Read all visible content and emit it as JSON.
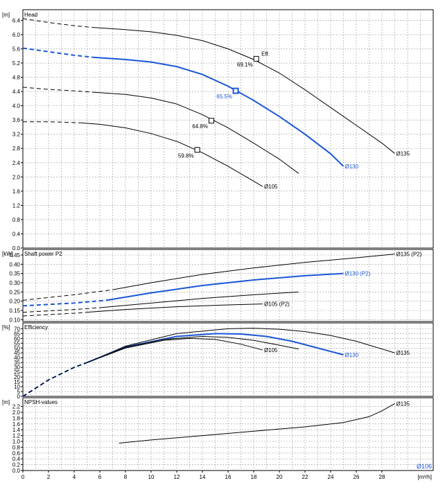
{
  "top_note": "",
  "colors": {
    "black_series": "#000000",
    "blue_series": "#1a56d6",
    "grid": "#9a9a9a"
  },
  "chart_data": [
    {
      "type": "line",
      "title": "Head",
      "ylabel": "[m]",
      "xlim": [
        0,
        32
      ],
      "ylim": [
        0,
        6.7
      ],
      "yticks": [
        0.0,
        0.4,
        0.8,
        1.2,
        1.6,
        2.0,
        2.4,
        2.8,
        3.2,
        3.6,
        4.0,
        4.4,
        4.8,
        5.2,
        5.6,
        6.0,
        6.4
      ],
      "series": [
        {
          "name": "Ø135",
          "color": "#000000",
          "dashed": [
            [
              0,
              6.45
            ],
            [
              2,
              6.34
            ],
            [
              4,
              6.25
            ],
            [
              5.5,
              6.2
            ]
          ],
          "values": [
            [
              5.5,
              6.2
            ],
            [
              8,
              6.14
            ],
            [
              10,
              6.08
            ],
            [
              12,
              5.98
            ],
            [
              14,
              5.83
            ],
            [
              16,
              5.6
            ],
            [
              18,
              5.3
            ],
            [
              20,
              4.92
            ],
            [
              22,
              4.45
            ],
            [
              24,
              3.95
            ],
            [
              26,
              3.45
            ],
            [
              28,
              2.95
            ],
            [
              29,
              2.66
            ]
          ]
        },
        {
          "name": "Ø130",
          "color": "#1a56d6",
          "dashed": [
            [
              0,
              5.62
            ],
            [
              2,
              5.52
            ],
            [
              4,
              5.42
            ],
            [
              5.5,
              5.36
            ]
          ],
          "values": [
            [
              5.5,
              5.36
            ],
            [
              8,
              5.3
            ],
            [
              10,
              5.23
            ],
            [
              12,
              5.1
            ],
            [
              14,
              4.88
            ],
            [
              16,
              4.55
            ],
            [
              18,
              4.15
            ],
            [
              20,
              3.7
            ],
            [
              22,
              3.2
            ],
            [
              24,
              2.65
            ],
            [
              25,
              2.3
            ]
          ]
        },
        {
          "name": "",
          "color": "#000000",
          "dashed": [
            [
              0,
              4.52
            ],
            [
              2,
              4.46
            ],
            [
              4,
              4.42
            ],
            [
              5.5,
              4.38
            ]
          ],
          "values": [
            [
              5.5,
              4.38
            ],
            [
              8,
              4.32
            ],
            [
              10,
              4.22
            ],
            [
              12,
              4.05
            ],
            [
              14,
              3.75
            ],
            [
              16,
              3.38
            ],
            [
              18,
              2.95
            ],
            [
              20,
              2.5
            ],
            [
              21.5,
              2.1
            ]
          ]
        },
        {
          "name": "Ø105",
          "color": "#000000",
          "dashed": [
            [
              0,
              3.55
            ],
            [
              2,
              3.55
            ],
            [
              3,
              3.54
            ],
            [
              4.5,
              3.52
            ]
          ],
          "values": [
            [
              4.5,
              3.52
            ],
            [
              6,
              3.48
            ],
            [
              8,
              3.38
            ],
            [
              10,
              3.22
            ],
            [
              12,
              3.0
            ],
            [
              14,
              2.68
            ],
            [
              16,
              2.3
            ],
            [
              18,
              1.88
            ],
            [
              18.7,
              1.73
            ]
          ]
        }
      ],
      "markers": [
        {
          "x": 18.2,
          "y": 5.32,
          "label": "69.1%",
          "color": "#000000"
        },
        {
          "x": 16.6,
          "y": 4.42,
          "label": "65.5%",
          "color": "#1a56d6"
        },
        {
          "x": 14.7,
          "y": 3.58,
          "label": "64.8%",
          "color": "#000000"
        },
        {
          "x": 13.6,
          "y": 2.76,
          "label": "59.8%",
          "color": "#000000"
        }
      ],
      "annotations": [
        {
          "x": 18.6,
          "y": 5.4,
          "text": "Eff."
        }
      ]
    },
    {
      "type": "line",
      "title": "Shaft power P2",
      "ylabel": "[kW]",
      "xlim": [
        0,
        32
      ],
      "ylim": [
        0.09,
        0.48
      ],
      "yticks": [
        0.1,
        0.15,
        0.2,
        0.25,
        0.3,
        0.35,
        0.4,
        0.45
      ],
      "series": [
        {
          "name": "Ø135 (P2)",
          "color": "#000000",
          "dashed": [
            [
              0,
              0.205
            ],
            [
              4,
              0.235
            ],
            [
              7,
              0.262
            ]
          ],
          "values": [
            [
              7,
              0.262
            ],
            [
              10,
              0.3
            ],
            [
              14,
              0.345
            ],
            [
              18,
              0.38
            ],
            [
              22,
              0.41
            ],
            [
              26,
              0.435
            ],
            [
              29,
              0.455
            ]
          ]
        },
        {
          "name": "Ø130 (P2)",
          "color": "#1a56d6",
          "dashed": [
            [
              0,
              0.175
            ],
            [
              4,
              0.19
            ],
            [
              6.5,
              0.205
            ]
          ],
          "values": [
            [
              6.5,
              0.205
            ],
            [
              10,
              0.245
            ],
            [
              14,
              0.285
            ],
            [
              18,
              0.315
            ],
            [
              22,
              0.338
            ],
            [
              25,
              0.35
            ]
          ]
        },
        {
          "name": "",
          "color": "#000000",
          "dashed": [
            [
              0,
              0.14
            ],
            [
              4,
              0.155
            ],
            [
              6,
              0.165
            ]
          ],
          "values": [
            [
              6,
              0.165
            ],
            [
              10,
              0.19
            ],
            [
              14,
              0.215
            ],
            [
              18,
              0.235
            ],
            [
              21.5,
              0.25
            ]
          ]
        },
        {
          "name": "Ø105 (P2)",
          "color": "#000000",
          "dashed": [
            [
              0,
              0.12
            ],
            [
              4,
              0.135
            ],
            [
              5,
              0.14
            ]
          ],
          "values": [
            [
              5,
              0.14
            ],
            [
              8,
              0.155
            ],
            [
              12,
              0.17
            ],
            [
              16,
              0.18
            ],
            [
              18.7,
              0.185
            ]
          ]
        }
      ]
    },
    {
      "type": "line",
      "title": "Efficiency",
      "ylabel": "[%]",
      "xlim": [
        0,
        32
      ],
      "ylim": [
        0,
        76
      ],
      "yticks": [
        0,
        5,
        10,
        15,
        20,
        25,
        30,
        35,
        40,
        45,
        50,
        55,
        60,
        65,
        70
      ],
      "series": [
        {
          "name": "Ø135",
          "color": "#000000",
          "dashed": [
            [
              0,
              0
            ],
            [
              2,
              17
            ],
            [
              4,
              30
            ],
            [
              5,
              35
            ]
          ],
          "values": [
            [
              5,
              35
            ],
            [
              8,
              52
            ],
            [
              12,
              65
            ],
            [
              16,
              70
            ],
            [
              18,
              70.5
            ],
            [
              20,
              69.5
            ],
            [
              22,
              67
            ],
            [
              24,
              63
            ],
            [
              26,
              57
            ],
            [
              29,
              45
            ]
          ]
        },
        {
          "name": "Ø130",
          "color": "#1a56d6",
          "dashed": [
            [
              0,
              0
            ],
            [
              2,
              17
            ],
            [
              4,
              30
            ],
            [
              5,
              35
            ]
          ],
          "values": [
            [
              5,
              35
            ],
            [
              8,
              51
            ],
            [
              12,
              62
            ],
            [
              15,
              65
            ],
            [
              17,
              64.5
            ],
            [
              19,
              62
            ],
            [
              21,
              57
            ],
            [
              23,
              50
            ],
            [
              25,
              43
            ]
          ]
        },
        {
          "name": "",
          "color": "#000000",
          "dashed": [
            [
              0,
              0
            ],
            [
              2,
              17
            ],
            [
              4,
              30
            ],
            [
              5,
              35
            ]
          ],
          "values": [
            [
              5,
              35
            ],
            [
              8,
              51
            ],
            [
              11,
              59
            ],
            [
              14,
              62
            ],
            [
              16,
              61
            ],
            [
              18,
              58
            ],
            [
              20,
              53
            ],
            [
              21.5,
              49
            ]
          ]
        },
        {
          "name": "Ø105",
          "color": "#000000",
          "dashed": [
            [
              0,
              0
            ],
            [
              2,
              17
            ],
            [
              4,
              30
            ],
            [
              5,
              35
            ]
          ],
          "values": [
            [
              5,
              35
            ],
            [
              8,
              50
            ],
            [
              11,
              58
            ],
            [
              13,
              60
            ],
            [
              15,
              59
            ],
            [
              17,
              54
            ],
            [
              18.7,
              48
            ]
          ]
        }
      ]
    },
    {
      "type": "line",
      "title": "NPSH-values",
      "ylabel": "[m]",
      "xlabel": "[m³/h]",
      "xlim": [
        0,
        32
      ],
      "ylim": [
        0,
        2.5
      ],
      "yticks": [
        0.0,
        0.2,
        0.4,
        0.6,
        0.8,
        1.0,
        1.2,
        1.4,
        1.6,
        1.8,
        2.0,
        2.2
      ],
      "xticks": [
        0,
        2,
        4,
        6,
        8,
        10,
        12,
        14,
        16,
        18,
        20,
        22,
        24,
        26,
        28
      ],
      "series": [
        {
          "name": "Ø135",
          "color": "#000000",
          "values": [
            [
              7.5,
              0.94
            ],
            [
              10,
              1.05
            ],
            [
              14,
              1.2
            ],
            [
              18,
              1.35
            ],
            [
              22,
              1.5
            ],
            [
              25,
              1.65
            ],
            [
              27,
              1.85
            ],
            [
              28,
              2.05
            ],
            [
              29,
              2.3
            ]
          ]
        }
      ],
      "annotations": [
        {
          "text": "Ø106",
          "color": "#1a56d6"
        }
      ]
    }
  ]
}
